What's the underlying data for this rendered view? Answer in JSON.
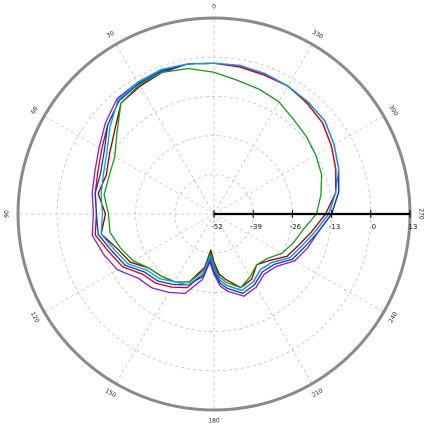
{
  "chart_data": {
    "type": "line",
    "coordinate_system": "polar",
    "theta_direction": "counterclockwise",
    "theta_zero": "top",
    "angle_ticks": [
      0,
      30,
      60,
      90,
      120,
      150,
      180,
      210,
      240,
      270,
      300,
      330
    ],
    "angle_tick_labels": [
      "0",
      "30",
      "60",
      "90",
      "120",
      "150",
      "180",
      "210",
      "240",
      "270",
      "300",
      "330"
    ],
    "radial_ticks": [
      -52,
      -39,
      -26,
      -13,
      0,
      13
    ],
    "radial_tick_labels": [
      "-52",
      "-39",
      "-26",
      "-13",
      "0",
      "13"
    ],
    "rlim": [
      -52,
      13
    ],
    "radial_axis_angle": 270,
    "grid": true,
    "legend": "none",
    "series": [
      {
        "color": "#8a0000",
        "theta": [
          0,
          10,
          20,
          30,
          40,
          50,
          60,
          70,
          80,
          90,
          100,
          110,
          120,
          130,
          140,
          150,
          160,
          170,
          175,
          180,
          185,
          190,
          200,
          210,
          220,
          230,
          240,
          250,
          260,
          270,
          280,
          290,
          300,
          310,
          320,
          330,
          340,
          350,
          360
        ],
        "r": [
          -2,
          -1.5,
          -2,
          -3,
          -4,
          -9,
          -12,
          -14,
          -13,
          -16,
          -14,
          -18,
          -20,
          -24,
          -25,
          -26,
          -28,
          -34,
          -40,
          -36,
          -32,
          -30,
          -26,
          -27,
          -30,
          -28,
          -24,
          -22,
          -19,
          -15,
          -11,
          -9,
          -7,
          -5,
          -4,
          -3,
          -3,
          -2.5,
          -2
        ]
      },
      {
        "color": "#e0000a",
        "theta": [
          0,
          10,
          20,
          30,
          40,
          50,
          60,
          70,
          80,
          90,
          100,
          110,
          120,
          130,
          140,
          150,
          160,
          170,
          175,
          180,
          185,
          190,
          200,
          210,
          220,
          230,
          240,
          250,
          260,
          270,
          280,
          290,
          300,
          310,
          320,
          330,
          340,
          350,
          360
        ],
        "r": [
          -2,
          -1.5,
          -1.5,
          -2,
          -3,
          -6,
          -9,
          -11,
          -12,
          -13,
          -12,
          -15,
          -17,
          -21,
          -22,
          -24,
          -26,
          -32,
          -38,
          -34,
          -30,
          -28,
          -25,
          -26,
          -28,
          -27,
          -23,
          -21,
          -18,
          -14,
          -11,
          -9,
          -7,
          -5,
          -4,
          -3,
          -3,
          -2.5,
          -2
        ]
      },
      {
        "color": "#8a1ecc",
        "theta": [
          0,
          10,
          20,
          30,
          40,
          50,
          60,
          70,
          80,
          90,
          100,
          110,
          120,
          130,
          140,
          150,
          160,
          170,
          175,
          180,
          185,
          190,
          200,
          210,
          220,
          230,
          240,
          250,
          260,
          270,
          280,
          290,
          300,
          310,
          320,
          330,
          340,
          350,
          360
        ],
        "r": [
          -2,
          -1.5,
          -1,
          -1.5,
          -2,
          -5,
          -8,
          -10,
          -11,
          -12,
          -11,
          -13,
          -15,
          -19,
          -20,
          -22,
          -24,
          -30,
          -36,
          -32,
          -28,
          -26,
          -23,
          -24,
          -26,
          -25,
          -21,
          -19,
          -17,
          -13,
          -10,
          -8,
          -6,
          -4,
          -3.5,
          -3,
          -2.5,
          -2,
          -2
        ]
      },
      {
        "color": "#0a38d8",
        "theta": [
          0,
          10,
          20,
          30,
          40,
          50,
          60,
          70,
          80,
          90,
          100,
          110,
          120,
          130,
          140,
          150,
          160,
          170,
          175,
          180,
          185,
          190,
          200,
          210,
          220,
          230,
          240,
          250,
          260,
          270,
          280,
          290,
          300,
          310,
          320,
          330,
          340,
          350,
          360
        ],
        "r": [
          -2,
          -1.5,
          -1.5,
          -2,
          -3,
          -6,
          -10,
          -12,
          -12,
          -13,
          -13,
          -16,
          -18,
          -22,
          -23,
          -25,
          -27,
          -31,
          -37,
          -33,
          -29,
          -27,
          -24,
          -25,
          -27,
          -26,
          -22,
          -20,
          -17,
          -13,
          -10,
          -8,
          -6,
          -4,
          -3.5,
          -3,
          -2.5,
          -2,
          -2
        ]
      },
      {
        "color": "#159a15",
        "theta": [
          0,
          10,
          20,
          30,
          40,
          50,
          60,
          70,
          80,
          90,
          100,
          110,
          120,
          130,
          140,
          150,
          160,
          170,
          175,
          180,
          185,
          190,
          200,
          210,
          220,
          230,
          240,
          250,
          260,
          270,
          280,
          290,
          300,
          310,
          320,
          330,
          340,
          350,
          360
        ],
        "r": [
          -5,
          -3,
          -2,
          -2.5,
          -4,
          -10,
          -14,
          -15,
          -15,
          -17,
          -17,
          -19,
          -21,
          -24,
          -25,
          -26,
          -28,
          -33,
          -39,
          -35,
          -31,
          -29,
          -26,
          -28,
          -30,
          -29,
          -26,
          -24,
          -22,
          -18,
          -16,
          -14,
          -13,
          -12,
          -11,
          -9,
          -8,
          -7,
          -5
        ]
      },
      {
        "color": "#0a9ee8",
        "theta": [
          0,
          10,
          20,
          30,
          40,
          50,
          60,
          70,
          80,
          90,
          100,
          110,
          120,
          130,
          140,
          150,
          160,
          170,
          175,
          180,
          185,
          190,
          200,
          210,
          220,
          230,
          240,
          250,
          260,
          270,
          280,
          290,
          300,
          310,
          320,
          330,
          340,
          350,
          360
        ],
        "r": [
          -2,
          -1.5,
          -1,
          -1.5,
          -2.5,
          -7,
          -11,
          -13,
          -14,
          -15,
          -14,
          -17,
          -19,
          -23,
          -24,
          -26,
          -27,
          -32,
          -38,
          -34,
          -30,
          -28,
          -25,
          -26,
          -28,
          -27,
          -23,
          -21,
          -18,
          -14,
          -11,
          -8,
          -6,
          -4,
          -3.5,
          -3,
          -2.5,
          -2,
          -2
        ]
      }
    ]
  }
}
